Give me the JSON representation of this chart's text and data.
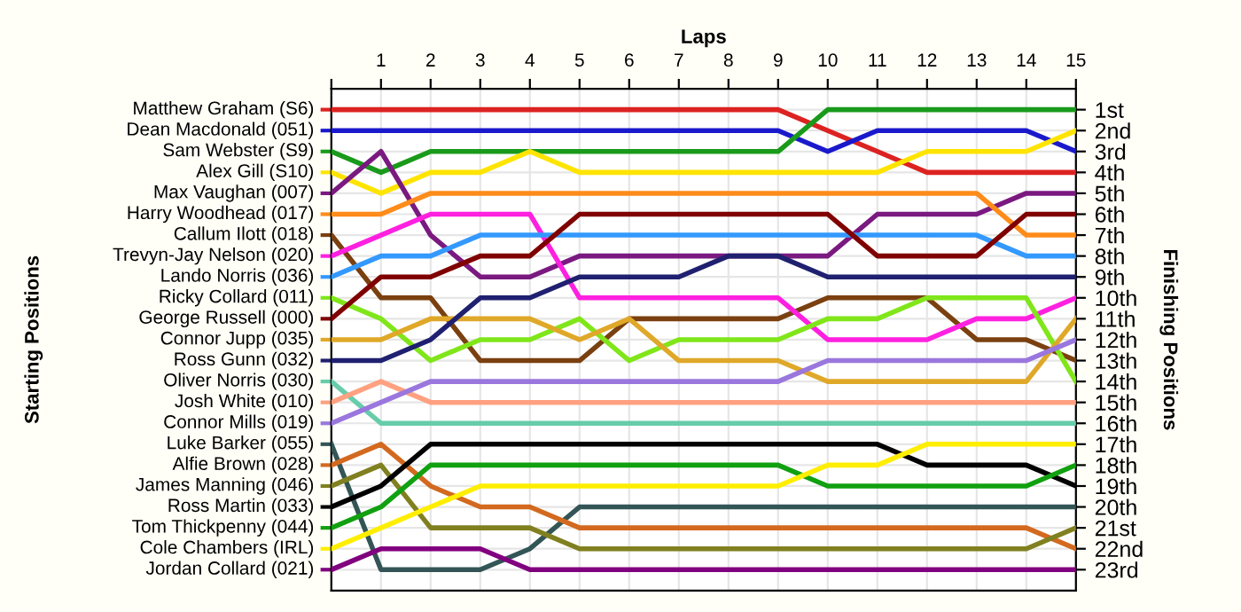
{
  "chart_data": {
    "type": "line",
    "xlabel": "Laps",
    "ylabel": "Finishing Positions",
    "annotations": [
      "Starting Positions"
    ],
    "x": [
      0,
      1,
      2,
      3,
      4,
      5,
      6,
      7,
      8,
      9,
      10,
      11,
      12,
      13,
      14,
      15
    ],
    "xlim": [
      0,
      15
    ],
    "xticks": [
      {
        "value": 0,
        "label": null
      },
      1,
      2,
      3,
      4,
      5,
      6,
      7,
      8,
      9,
      10,
      11,
      12,
      13,
      14,
      15
    ],
    "ylim": [
      24,
      0
    ],
    "yticks": [
      {
        "value": 1,
        "label": "1st"
      },
      {
        "value": 2,
        "label": "2nd"
      },
      {
        "value": 3,
        "label": "3rd"
      },
      {
        "value": 4,
        "label": "4th"
      },
      {
        "value": 5,
        "label": "5th"
      },
      {
        "value": 6,
        "label": "6th"
      },
      {
        "value": 7,
        "label": "7th"
      },
      {
        "value": 8,
        "label": "8th"
      },
      {
        "value": 9,
        "label": "9th"
      },
      {
        "value": 10,
        "label": "10th"
      },
      {
        "value": 11,
        "label": "11th"
      },
      {
        "value": 12,
        "label": "12th"
      },
      {
        "value": 13,
        "label": "13th"
      },
      {
        "value": 14,
        "label": "14th"
      },
      {
        "value": 15,
        "label": "15th"
      },
      {
        "value": 16,
        "label": "16th"
      },
      {
        "value": 17,
        "label": "17th"
      },
      {
        "value": 18,
        "label": "18th"
      },
      {
        "value": 19,
        "label": "19th"
      },
      {
        "value": 20,
        "label": "20th"
      },
      {
        "value": 21,
        "label": "21st"
      },
      {
        "value": 22,
        "label": "22nd"
      },
      {
        "value": 23,
        "label": "23rd"
      }
    ],
    "grid": true,
    "legend": "left",
    "marker": "none",
    "line_style": "solid",
    "series": [
      {
        "name": "Matthew Graham (S6)",
        "color": "#dd2222",
        "values": [
          1,
          1,
          1,
          1,
          1,
          1,
          1,
          1,
          1,
          1,
          2,
          3,
          4,
          4,
          4,
          4
        ]
      },
      {
        "name": "Dean Macdonald (051)",
        "color": "#1a1acc",
        "values": [
          2,
          2,
          2,
          2,
          2,
          2,
          2,
          2,
          2,
          2,
          3,
          2,
          2,
          2,
          2,
          3
        ]
      },
      {
        "name": "Sam Webster (S9)",
        "color": "#1a9a1a",
        "values": [
          3,
          4,
          3,
          3,
          3,
          3,
          3,
          3,
          3,
          3,
          1,
          1,
          1,
          1,
          1,
          1
        ]
      },
      {
        "name": "Alex Gill (S10)",
        "color": "#ffe400",
        "values": [
          4,
          5,
          4,
          4,
          3,
          4,
          4,
          4,
          4,
          4,
          4,
          4,
          3,
          3,
          3,
          2
        ]
      },
      {
        "name": "Max Vaughan (007)",
        "color": "#7a1a80",
        "values": [
          5,
          3,
          7,
          9,
          9,
          8,
          8,
          8,
          8,
          8,
          8,
          6,
          6,
          6,
          5,
          5
        ]
      },
      {
        "name": "Harry Woodhead (017)",
        "color": "#ff8c1a",
        "values": [
          6,
          6,
          5,
          5,
          5,
          5,
          5,
          5,
          5,
          5,
          5,
          5,
          5,
          5,
          7,
          7
        ]
      },
      {
        "name": "Callum Ilott (018)",
        "color": "#7a4010",
        "values": [
          7,
          10,
          10,
          13,
          13,
          13,
          11,
          11,
          11,
          11,
          10,
          10,
          10,
          12,
          12,
          13
        ]
      },
      {
        "name": "Trevyn-Jay Nelson (020)",
        "color": "#ff20e0",
        "values": [
          8,
          7,
          6,
          6,
          6,
          10,
          10,
          10,
          10,
          10,
          12,
          12,
          12,
          11,
          11,
          10
        ]
      },
      {
        "name": "Lando Norris (036)",
        "color": "#3399ff",
        "values": [
          9,
          8,
          8,
          7,
          7,
          7,
          7,
          7,
          7,
          7,
          7,
          7,
          7,
          7,
          8,
          8
        ]
      },
      {
        "name": "Ricky Collard (011)",
        "color": "#80e619",
        "values": [
          10,
          11,
          13,
          12,
          12,
          11,
          13,
          12,
          12,
          12,
          11,
          11,
          10,
          10,
          10,
          14
        ]
      },
      {
        "name": "George Russell (000)",
        "color": "#800000",
        "values": [
          11,
          9,
          9,
          8,
          8,
          6,
          6,
          6,
          6,
          6,
          6,
          8,
          8,
          8,
          6,
          6
        ]
      },
      {
        "name": "Connor Jupp (035)",
        "color": "#e0a828",
        "values": [
          12,
          12,
          11,
          11,
          11,
          12,
          11,
          13,
          13,
          13,
          14,
          14,
          14,
          14,
          14,
          11
        ]
      },
      {
        "name": "Ross Gunn (032)",
        "color": "#202070",
        "values": [
          13,
          13,
          12,
          10,
          10,
          9,
          9,
          9,
          8,
          8,
          9,
          9,
          9,
          9,
          9,
          9
        ]
      },
      {
        "name": "Oliver Norris (030)",
        "color": "#66ccaa",
        "values": [
          14,
          16,
          16,
          16,
          16,
          16,
          16,
          16,
          16,
          16,
          16,
          16,
          16,
          16,
          16,
          16
        ]
      },
      {
        "name": "Josh White (010)",
        "color": "#ffa080",
        "values": [
          15,
          14,
          15,
          15,
          15,
          15,
          15,
          15,
          15,
          15,
          15,
          15,
          15,
          15,
          15,
          15
        ]
      },
      {
        "name": "Connor Mills (019)",
        "color": "#9977dd",
        "values": [
          16,
          15,
          14,
          14,
          14,
          14,
          14,
          14,
          14,
          14,
          13,
          13,
          13,
          13,
          13,
          12
        ]
      },
      {
        "name": "Luke Barker (055)",
        "color": "#335555",
        "values": [
          17,
          23,
          23,
          23,
          22,
          20,
          20,
          20,
          20,
          20,
          20,
          20,
          20,
          20,
          20,
          20
        ]
      },
      {
        "name": "Alfie Brown (028)",
        "color": "#d2691e",
        "values": [
          18,
          17,
          19,
          20,
          20,
          21,
          21,
          21,
          21,
          21,
          21,
          21,
          21,
          21,
          21,
          22
        ]
      },
      {
        "name": "James Manning (046)",
        "color": "#808020",
        "values": [
          19,
          18,
          21,
          21,
          21,
          22,
          22,
          22,
          22,
          22,
          22,
          22,
          22,
          22,
          22,
          21
        ]
      },
      {
        "name": "Ross Martin (033)",
        "color": "#000000",
        "values": [
          20,
          19,
          17,
          17,
          17,
          17,
          17,
          17,
          17,
          17,
          17,
          17,
          18,
          18,
          18,
          19
        ]
      },
      {
        "name": "Tom Thickpenny (044)",
        "color": "#10a010",
        "values": [
          21,
          20,
          18,
          18,
          18,
          18,
          18,
          18,
          18,
          18,
          19,
          19,
          19,
          19,
          19,
          18
        ]
      },
      {
        "name": "Cole Chambers (IRL)",
        "color": "#ffee00",
        "values": [
          22,
          21,
          20,
          19,
          19,
          19,
          19,
          19,
          19,
          19,
          18,
          18,
          17,
          17,
          17,
          17
        ]
      },
      {
        "name": "Jordan Collard (021)",
        "color": "#800080",
        "values": [
          23,
          22,
          22,
          22,
          23,
          23,
          23,
          23,
          23,
          23,
          23,
          23,
          23,
          23,
          23,
          23
        ]
      }
    ]
  }
}
